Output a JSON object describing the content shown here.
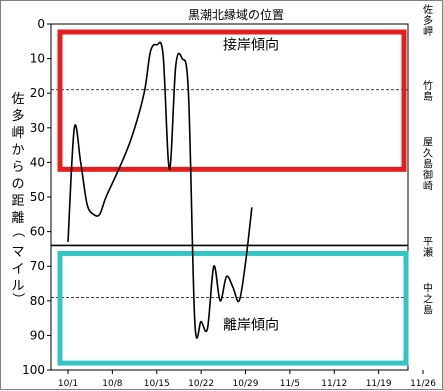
{
  "chart_data": {
    "type": "line",
    "title": "黒潮北縁域の位置",
    "ylabel": "佐多岬からの距離（マイル）",
    "xlabel": "",
    "ylim": [
      0,
      100
    ],
    "y_inverted": true,
    "x_ticks": [
      "10/1",
      "10/8",
      "10/15",
      "10/22",
      "10/29",
      "11/5",
      "11/12",
      "11/19",
      "11/26"
    ],
    "y_ticks": [
      0,
      10,
      20,
      30,
      40,
      50,
      60,
      70,
      80,
      90,
      100
    ],
    "grid": false,
    "series": [
      {
        "points": [
          [
            "10/1",
            63
          ],
          [
            "10/2",
            30
          ],
          [
            "10/3",
            40
          ],
          [
            "10/4",
            52
          ],
          [
            "10/5",
            55
          ],
          [
            "10/6",
            55
          ],
          [
            "10/7",
            50
          ],
          [
            "10/9",
            42
          ],
          [
            "10/11",
            33
          ],
          [
            "10/13",
            20
          ],
          [
            "10/14",
            8
          ],
          [
            "10/15",
            6
          ],
          [
            "10/16",
            9
          ],
          [
            "10/17",
            42
          ],
          [
            "10/18",
            12
          ],
          [
            "10/19",
            10
          ],
          [
            "10/20",
            20
          ],
          [
            "10/21",
            86
          ],
          [
            "10/22",
            86
          ],
          [
            "10/23",
            88
          ],
          [
            "10/24",
            70
          ],
          [
            "10/25",
            80
          ],
          [
            "10/26",
            73
          ],
          [
            "10/27",
            76
          ],
          [
            "10/28",
            80
          ],
          [
            "10/29",
            69
          ],
          [
            "10/30",
            53
          ]
        ],
        "color": "#000000"
      }
    ],
    "zones": [
      {
        "label": "接岸傾向",
        "y_range": [
          0,
          42
        ],
        "color": "#e51e1e"
      },
      {
        "label": "離岸傾向",
        "y_range": [
          64,
          98
        ],
        "color": "#35c4c4"
      }
    ],
    "reference_lines": [
      {
        "y": 19,
        "style": "dashed"
      },
      {
        "y": 79,
        "style": "dashed"
      },
      {
        "y": 64,
        "style": "solid"
      }
    ],
    "right_labels": [
      {
        "text": "佐多岬",
        "y": 0
      },
      {
        "text": "竹島",
        "y": 19
      },
      {
        "text": "屋久島御崎",
        "y": 40
      },
      {
        "text": "平瀬",
        "y": 64
      },
      {
        "text": "中之島",
        "y": 79
      }
    ]
  }
}
